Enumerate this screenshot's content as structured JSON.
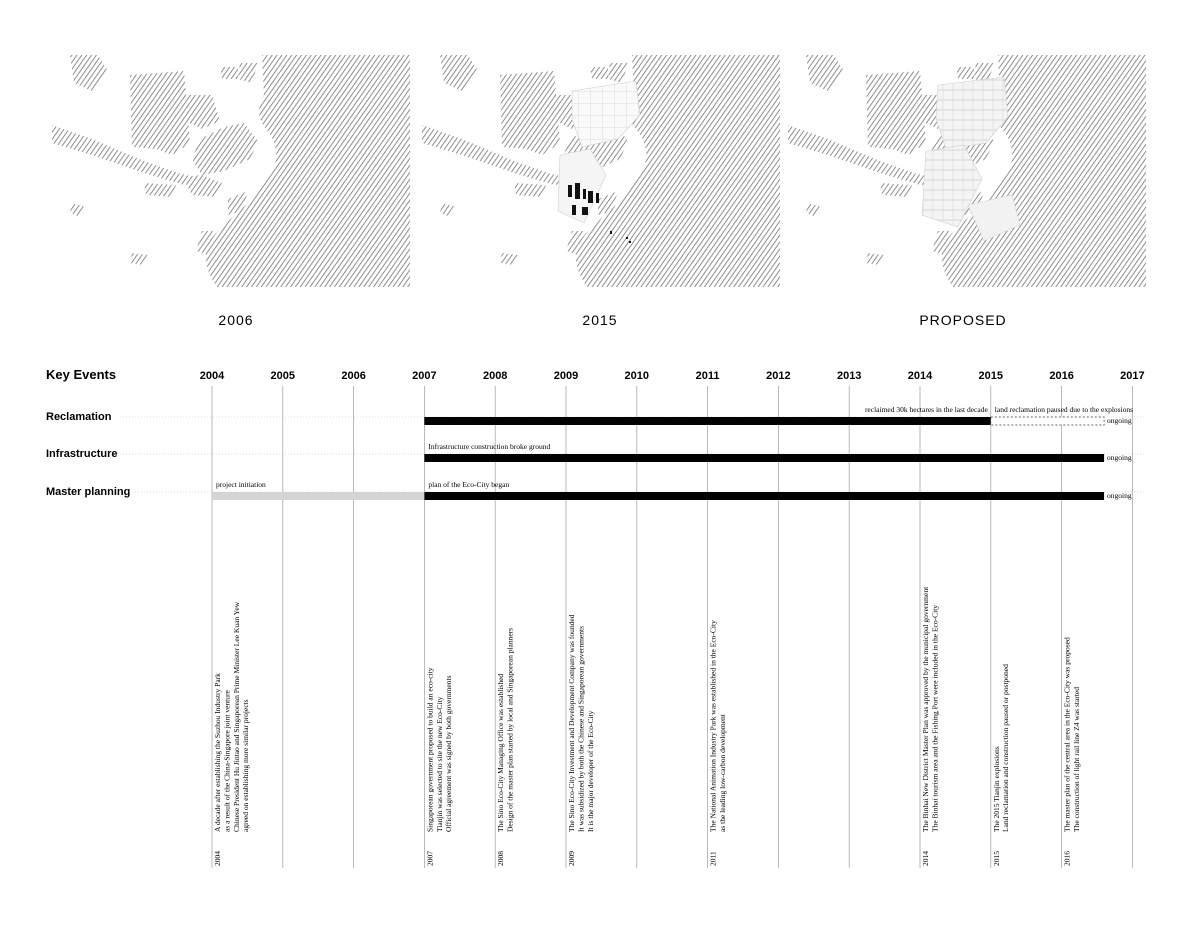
{
  "maps": [
    {
      "label": "2006",
      "hatch_color": "#6a6a6a",
      "stage": "before"
    },
    {
      "label": "2015",
      "hatch_color": "#6a6a6a",
      "stage": "mid"
    },
    {
      "label": "PROPOSED",
      "hatch_color": "#6a6a6a",
      "stage": "proposed"
    }
  ],
  "timeline": {
    "heading": "Key Events",
    "years": [
      "2004",
      "2005",
      "2006",
      "2007",
      "2008",
      "2009",
      "2010",
      "2011",
      "2012",
      "2013",
      "2014",
      "2015",
      "2016",
      "2017"
    ],
    "year_range": [
      2004,
      2017
    ],
    "tracks": [
      {
        "name": "Reclamation",
        "bars": [
          {
            "start": 2007,
            "end": 2015,
            "style": "solid"
          },
          {
            "start": 2015,
            "end": 2016.6,
            "style": "dashed"
          }
        ],
        "notes": [
          {
            "text": "reclaimed 30k hectares in the last decade",
            "anchor_year": 2015,
            "align": "end"
          },
          {
            "text": "land reclamation paused due to the explosions",
            "anchor_year": 2015,
            "align": "start"
          }
        ],
        "status": "ongoing"
      },
      {
        "name": "Infrastructure",
        "bars": [
          {
            "start": 2007,
            "end": 2016.6,
            "style": "solid"
          }
        ],
        "notes": [
          {
            "text": "Infrastructure construction broke ground",
            "anchor_year": 2007,
            "align": "start"
          }
        ],
        "status": "ongoing"
      },
      {
        "name": "Master planning",
        "bars": [
          {
            "start": 2004,
            "end": 2007,
            "style": "light"
          },
          {
            "start": 2007,
            "end": 2016.6,
            "style": "solid"
          }
        ],
        "notes": [
          {
            "text": "project initiation",
            "anchor_year": 2004,
            "align": "start"
          },
          {
            "text": "plan of the Eco-City began",
            "anchor_year": 2007,
            "align": "start"
          }
        ],
        "status": "ongoing"
      }
    ],
    "events": [
      {
        "year": "2004",
        "lines": [
          "A decade after establishing the Suzhou Industry Park",
          "as a result of the China-Singapore joint venture",
          "Chinese President Hu Jintao and Singaporean Prime Minister Lee Kuan Yew",
          "agreed on establishing more similar projects"
        ]
      },
      {
        "year": "2007",
        "lines": [
          "Singaporean government proposed to build an eco-city",
          "Tianjin was selected to site the new Eco-City",
          "Official agreement was signed by both governments"
        ]
      },
      {
        "year": "2008",
        "lines": [
          "The Sino Eco-City Managing Office was established",
          "Design of the master plan started by local and Singaporean planners"
        ]
      },
      {
        "year": "2009",
        "lines": [
          "The Sino Eco-City Investment and Development Company was founded",
          "It was subsidized by both the Chinese and Singaporean governments",
          "It is the major developer of the Eco-City"
        ]
      },
      {
        "year": "2011",
        "lines": [
          "The National Animation Industry Park was established in the Eco-City",
          "as the leading low-carbon development"
        ]
      },
      {
        "year": "2014",
        "lines": [
          "The Binhai New District Master Plan was approved by the municipal government",
          "The Binhai tourism area and the Fishing Port were included in the Eco-City"
        ]
      },
      {
        "year": "2015",
        "lines": [
          "The 2015 Tianjin explosions",
          "Land reclamation and construction paused or postponed"
        ]
      },
      {
        "year": "2016",
        "lines": [
          "The master plan of the central area in the Eco-City was proposed",
          "The construction of light rail line Z4 was started"
        ]
      }
    ]
  },
  "colors": {
    "ink": "#000000",
    "grid": "#a8a8a8",
    "light_bar": "#d4d4d8",
    "note": "#555555"
  }
}
